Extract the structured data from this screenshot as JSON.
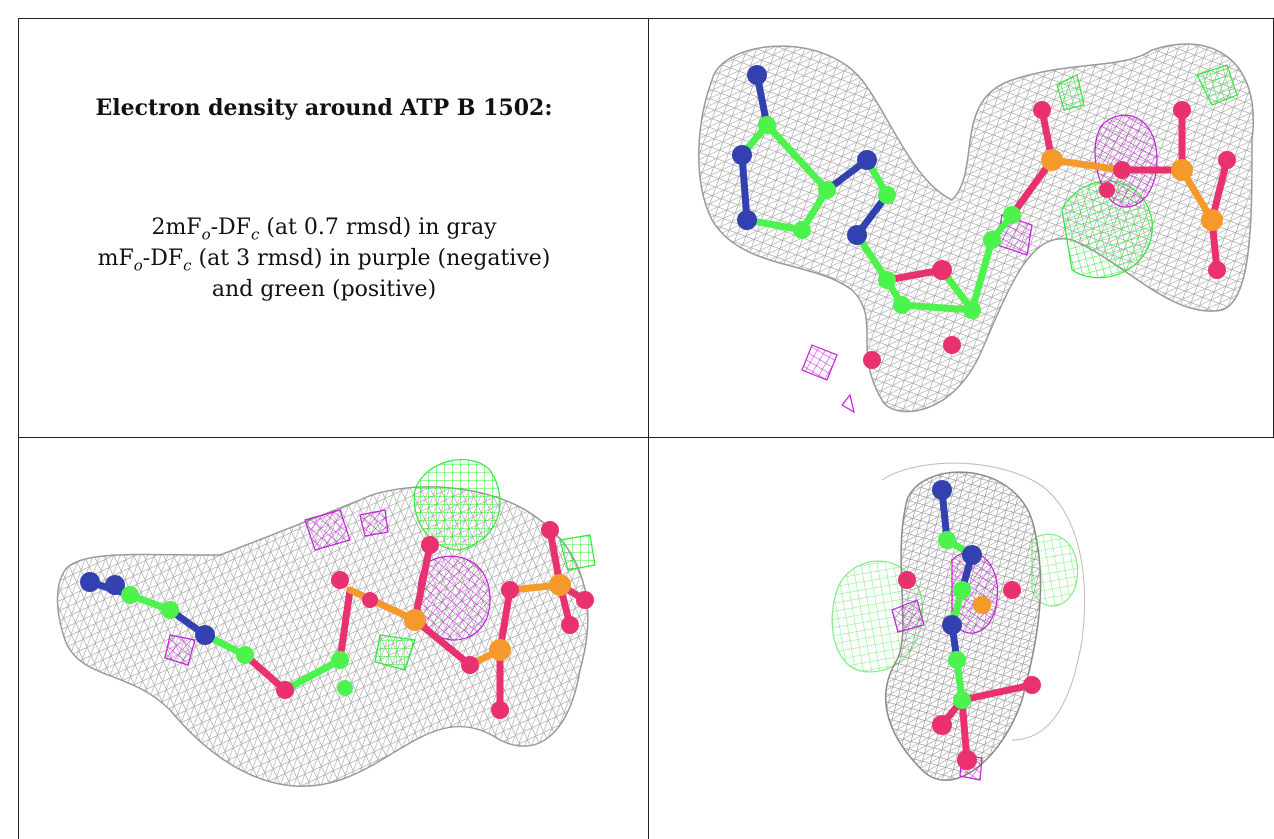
{
  "caption": {
    "title": "Electron density around ATP B 1502:",
    "line1": {
      "pre": "2mF",
      "sub1": "o",
      "mid": "-DF",
      "sub2": "c",
      "post": " (at 0.7 rmsd) in gray"
    },
    "line2": {
      "pre": "mF",
      "sub1": "o",
      "mid": "-DF",
      "sub2": "c",
      "post": " (at 3 rmsd) in purple (negative)"
    },
    "line3": "and green (positive)"
  },
  "colors": {
    "map_2fofc": "#8a8a8a",
    "map_negative": "#c21fd6",
    "map_positive": "#2ee83a",
    "carbon": "#4df34d",
    "nitrogen": "#3340b0",
    "oxygen": "#e8316e",
    "phosphorus": "#f4992a"
  }
}
